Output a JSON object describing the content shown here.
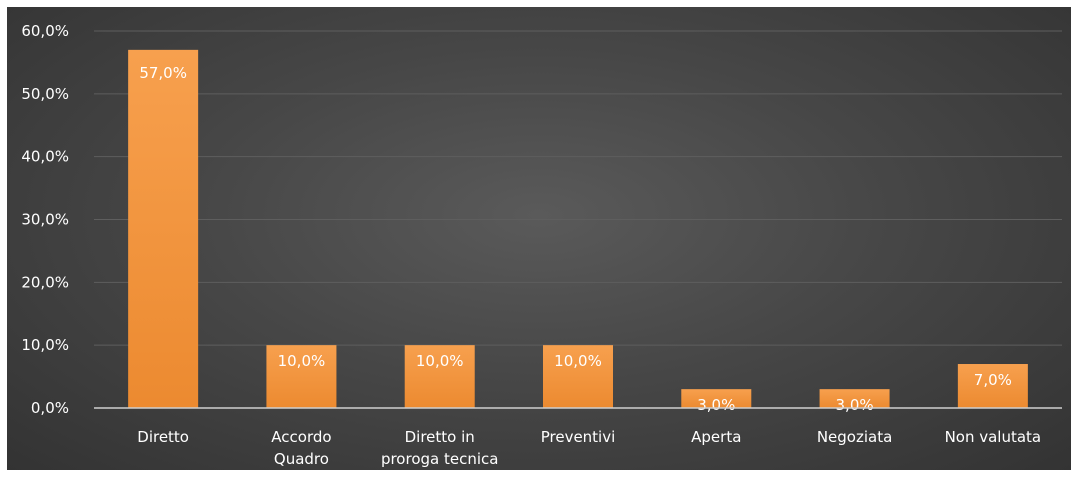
{
  "chart_data": {
    "type": "bar",
    "title": "",
    "xlabel": "",
    "ylabel": "",
    "categories": [
      [
        "Diretto"
      ],
      [
        "Accordo",
        "Quadro"
      ],
      [
        "Diretto in",
        "proroga tecnica"
      ],
      [
        "Preventivi"
      ],
      [
        "Aperta"
      ],
      [
        "Negoziata"
      ],
      [
        "Non valutata"
      ]
    ],
    "values": [
      57.0,
      10.0,
      10.0,
      10.0,
      3.0,
      3.0,
      7.0
    ],
    "data_labels": [
      "57,0%",
      "10,0%",
      "10,0%",
      "10,0%",
      "3,0%",
      "3,0%",
      "7,0%"
    ],
    "y_ticks": [
      0,
      10,
      20,
      30,
      40,
      50,
      60
    ],
    "y_tick_labels": [
      "0,0%",
      "10,0%",
      "20,0%",
      "30,0%",
      "40,0%",
      "50,0%",
      "60,0%"
    ],
    "ylim": [
      0,
      60
    ],
    "grid": true,
    "legend": "none",
    "colors": {
      "bar_top": "#f7a04e",
      "bar_bottom": "#ec8a30",
      "background": "#474747"
    }
  }
}
